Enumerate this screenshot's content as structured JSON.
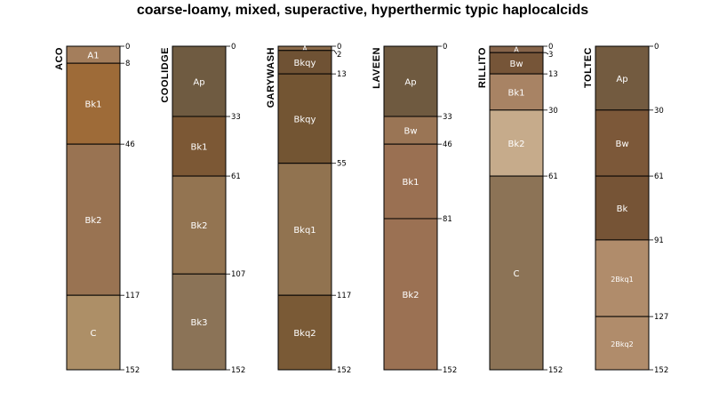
{
  "chart_data": {
    "type": "soil-profile",
    "title": "coarse-loamy, mixed, superactive, hyperthermic typic haplocalcids",
    "depth_unit": "cm",
    "depth_range": [
      0,
      152
    ],
    "profiles": [
      {
        "name": "ACO",
        "depth_labels": [
          "0",
          "8",
          "46",
          "117",
          "152"
        ],
        "horizons": [
          {
            "name": "A1",
            "top": 0,
            "bottom": 8,
            "color": "#a47e5c"
          },
          {
            "name": "Bk1",
            "top": 8,
            "bottom": 46,
            "color": "#9e6b38"
          },
          {
            "name": "Bk2",
            "top": 46,
            "bottom": 117,
            "color": "#997352"
          },
          {
            "name": "C",
            "top": 117,
            "bottom": 152,
            "color": "#ad8f67"
          }
        ]
      },
      {
        "name": "COOLIDGE",
        "depth_labels": [
          "0",
          "33",
          "61",
          "107",
          "152"
        ],
        "horizons": [
          {
            "name": "Ap",
            "top": 0,
            "bottom": 33,
            "color": "#6f5b41"
          },
          {
            "name": "Bk1",
            "top": 33,
            "bottom": 61,
            "color": "#7c5835"
          },
          {
            "name": "Bk2",
            "top": 61,
            "bottom": 107,
            "color": "#937451"
          },
          {
            "name": "Bk3",
            "top": 107,
            "bottom": 152,
            "color": "#8b7357"
          }
        ]
      },
      {
        "name": "GARYWASH",
        "depth_labels": [
          "0",
          "2",
          "13",
          "55",
          "117",
          "152"
        ],
        "horizons": [
          {
            "name": "A",
            "top": 0,
            "bottom": 2,
            "color": "#8a6a4a"
          },
          {
            "name": "Bkqy",
            "top": 2,
            "bottom": 13,
            "color": "#6f5234"
          },
          {
            "name": "Bkqy",
            "top": 13,
            "bottom": 55,
            "color": "#735533"
          },
          {
            "name": "Bkq1",
            "top": 55,
            "bottom": 117,
            "color": "#917350"
          },
          {
            "name": "Bkq2",
            "top": 117,
            "bottom": 152,
            "color": "#7a5a36"
          }
        ]
      },
      {
        "name": "LAVEEN",
        "depth_labels": [
          "0",
          "33",
          "46",
          "81",
          "152"
        ],
        "horizons": [
          {
            "name": "Ap",
            "top": 0,
            "bottom": 33,
            "color": "#6f5a40"
          },
          {
            "name": "Bw",
            "top": 33,
            "bottom": 46,
            "color": "#9a7555"
          },
          {
            "name": "Bk1",
            "top": 46,
            "bottom": 81,
            "color": "#9a7052"
          },
          {
            "name": "Bk2",
            "top": 81,
            "bottom": 152,
            "color": "#9b7153"
          }
        ]
      },
      {
        "name": "RILLITO",
        "depth_labels": [
          "0",
          "3",
          "13",
          "30",
          "61",
          "152"
        ],
        "horizons": [
          {
            "name": "A",
            "top": 0,
            "bottom": 3,
            "color": "#86644a"
          },
          {
            "name": "Bw",
            "top": 3,
            "bottom": 13,
            "color": "#765538"
          },
          {
            "name": "Bk1",
            "top": 13,
            "bottom": 30,
            "color": "#a88364"
          },
          {
            "name": "Bk2",
            "top": 30,
            "bottom": 61,
            "color": "#c6ab8b"
          },
          {
            "name": "C",
            "top": 61,
            "bottom": 152,
            "color": "#8c7356"
          }
        ]
      },
      {
        "name": "TOLTEC",
        "depth_labels": [
          "0",
          "30",
          "61",
          "91",
          "127",
          "152"
        ],
        "horizons": [
          {
            "name": "Ap",
            "top": 0,
            "bottom": 30,
            "color": "#735b40"
          },
          {
            "name": "Bw",
            "top": 30,
            "bottom": 61,
            "color": "#7c5839"
          },
          {
            "name": "Bk",
            "top": 61,
            "bottom": 91,
            "color": "#765436"
          },
          {
            "name": "2Bkq1",
            "top": 91,
            "bottom": 127,
            "color": "#b08c6b"
          },
          {
            "name": "2Bkq2",
            "top": 127,
            "bottom": 152,
            "color": "#b08c6b"
          }
        ]
      }
    ]
  }
}
